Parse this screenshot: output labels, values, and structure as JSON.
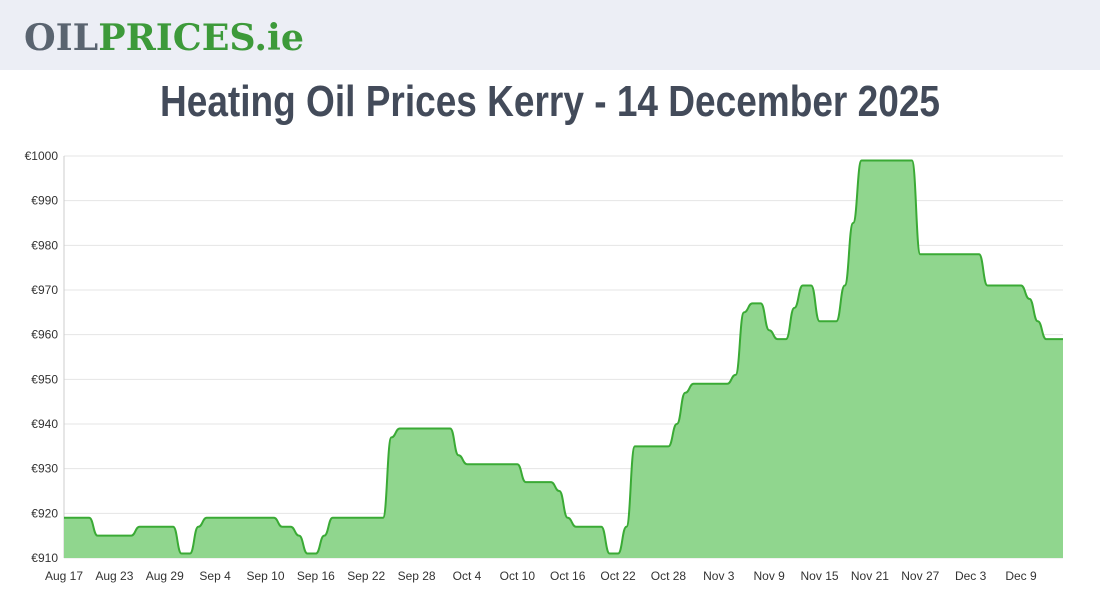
{
  "header": {
    "logo": {
      "part1": "OIL",
      "part2": "PRICES.ie"
    }
  },
  "chart_data": {
    "type": "area",
    "title": "Heating Oil Prices Kerry - 14 December 2025",
    "color": "#3aaa35",
    "fill": "#90d68e",
    "grid": true,
    "ylim": [
      910,
      1000
    ],
    "yticks": [
      {
        "value": 910,
        "label": "€910"
      },
      {
        "value": 920,
        "label": "€920"
      },
      {
        "value": 930,
        "label": "€930"
      },
      {
        "value": 940,
        "label": "€940"
      },
      {
        "value": 950,
        "label": "€950"
      },
      {
        "value": 960,
        "label": "€960"
      },
      {
        "value": 970,
        "label": "€970"
      },
      {
        "value": 980,
        "label": "€980"
      },
      {
        "value": 990,
        "label": "€990"
      },
      {
        "value": 1000,
        "label": "€1000"
      }
    ],
    "categories": [
      "Aug 17",
      null,
      null,
      null,
      null,
      null,
      "Aug 23",
      null,
      null,
      null,
      null,
      null,
      "Aug 29",
      null,
      null,
      null,
      null,
      null,
      "Sep 4",
      null,
      null,
      null,
      null,
      null,
      "Sep 10",
      null,
      null,
      null,
      null,
      null,
      "Sep 16",
      null,
      null,
      null,
      null,
      null,
      "Sep 22",
      null,
      null,
      null,
      null,
      null,
      "Sep 28",
      null,
      null,
      null,
      null,
      null,
      "Oct 4",
      null,
      null,
      null,
      null,
      null,
      "Oct 10",
      null,
      null,
      null,
      null,
      null,
      "Oct 16",
      null,
      null,
      null,
      null,
      null,
      "Oct 22",
      null,
      null,
      null,
      null,
      null,
      "Oct 28",
      null,
      null,
      null,
      null,
      null,
      "Nov 3",
      null,
      null,
      null,
      null,
      null,
      "Nov 9",
      null,
      null,
      null,
      null,
      null,
      "Nov 15",
      null,
      null,
      null,
      null,
      null,
      "Nov 21",
      null,
      null,
      null,
      null,
      null,
      "Nov 27",
      null,
      null,
      null,
      null,
      null,
      "Dec 3",
      null,
      null,
      null,
      null,
      null,
      "Dec 9",
      null,
      null,
      null,
      null,
      null
    ],
    "values": [
      919,
      919,
      919,
      919,
      915,
      915,
      915,
      915,
      915,
      917,
      917,
      917,
      917,
      917,
      911,
      911,
      917,
      919,
      919,
      919,
      919,
      919,
      919,
      919,
      919,
      919,
      917,
      917,
      915,
      911,
      911,
      915,
      919,
      919,
      919,
      919,
      919,
      919,
      919,
      937,
      939,
      939,
      939,
      939,
      939,
      939,
      939,
      933,
      931,
      931,
      931,
      931,
      931,
      931,
      931,
      927,
      927,
      927,
      927,
      925,
      919,
      917,
      917,
      917,
      917,
      911,
      911,
      917,
      935,
      935,
      935,
      935,
      935,
      940,
      947,
      949,
      949,
      949,
      949,
      949,
      951,
      965,
      967,
      967,
      961,
      959,
      959,
      966,
      971,
      971,
      963,
      963,
      963,
      971,
      985,
      999,
      999,
      999,
      999,
      999,
      999,
      999,
      978,
      978,
      978,
      978,
      978,
      978,
      978,
      978,
      971,
      971,
      971,
      971,
      971,
      968,
      963,
      959,
      959,
      959
    ]
  }
}
